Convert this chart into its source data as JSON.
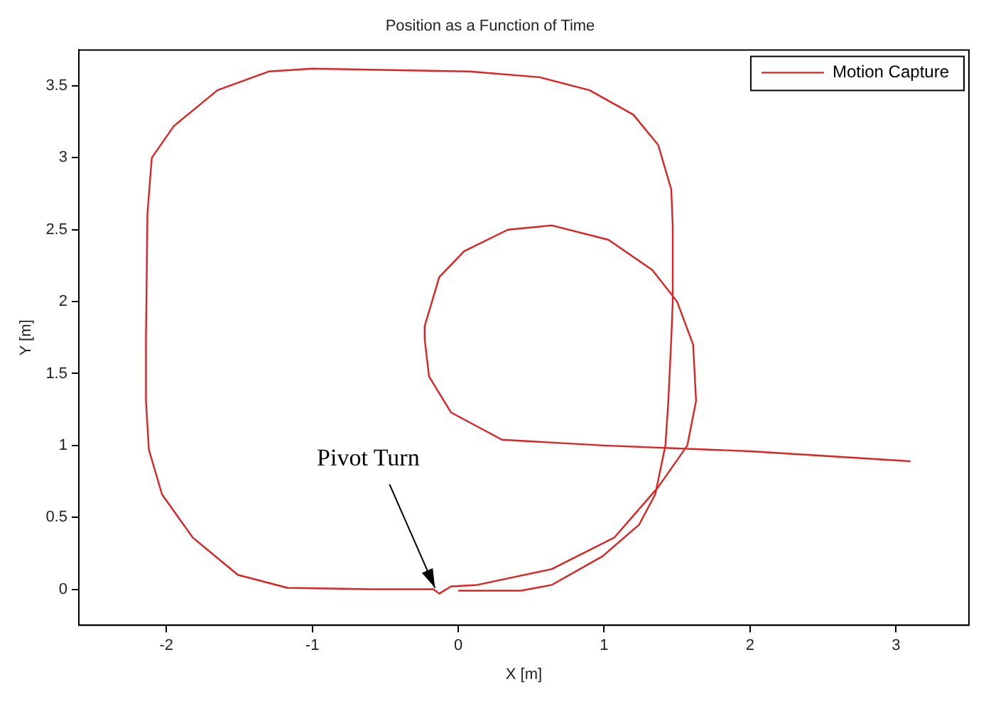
{
  "chart_data": {
    "type": "line",
    "title": "Position as a Function of Time",
    "xlabel": "X [m]",
    "ylabel": "Y [m]",
    "xlim": [
      -2.6,
      3.5
    ],
    "xticks": [
      -2,
      -1,
      0,
      1,
      2,
      3
    ],
    "ylim": [
      -0.25,
      3.75
    ],
    "yticks": [
      0,
      0.5,
      1,
      1.5,
      2,
      2.5,
      3,
      3.5
    ],
    "grid": false,
    "legend": "top right",
    "marker": "none",
    "line_style": "solid",
    "annotations": [
      {
        "text": "Pivot Turn",
        "x": -0.13,
        "y": -0.03
      }
    ],
    "series": [
      {
        "name": "Motion Capture",
        "color": "#dd2222",
        "x": [
          3.1,
          2.0,
          1.0,
          0.3,
          -0.05,
          -0.2,
          -0.23,
          -0.23,
          -0.13,
          0.04,
          0.34,
          0.64,
          1.03,
          1.33,
          1.5,
          1.61,
          1.63,
          1.57,
          1.37,
          1.07,
          0.64,
          0.13,
          -0.05,
          -0.13,
          -0.17,
          -0.6,
          -1.17,
          -1.51,
          -1.82,
          -2.03,
          -2.12,
          -2.14,
          -2.14,
          -2.13,
          -2.1,
          -1.95,
          -1.65,
          -1.3,
          -1.0,
          0.08,
          0.56,
          0.9,
          1.2,
          1.37,
          1.46,
          1.47,
          1.47,
          1.46,
          1.44,
          1.42,
          1.35,
          1.24,
          0.99,
          0.64,
          0.43,
          0.0
        ],
        "values": [
          0.89,
          0.96,
          1.0,
          1.04,
          1.23,
          1.48,
          1.74,
          1.83,
          2.17,
          2.35,
          2.5,
          2.53,
          2.43,
          2.22,
          2.0,
          1.7,
          1.31,
          1.0,
          0.71,
          0.36,
          0.14,
          0.03,
          0.02,
          -0.03,
          0.0,
          0.0,
          0.01,
          0.1,
          0.36,
          0.66,
          0.97,
          1.31,
          1.74,
          2.61,
          3.0,
          3.22,
          3.47,
          3.6,
          3.62,
          3.6,
          3.56,
          3.47,
          3.3,
          3.09,
          2.78,
          2.52,
          2.0,
          1.74,
          1.31,
          1.0,
          0.66,
          0.45,
          0.23,
          0.03,
          -0.01,
          -0.01
        ]
      }
    ]
  }
}
